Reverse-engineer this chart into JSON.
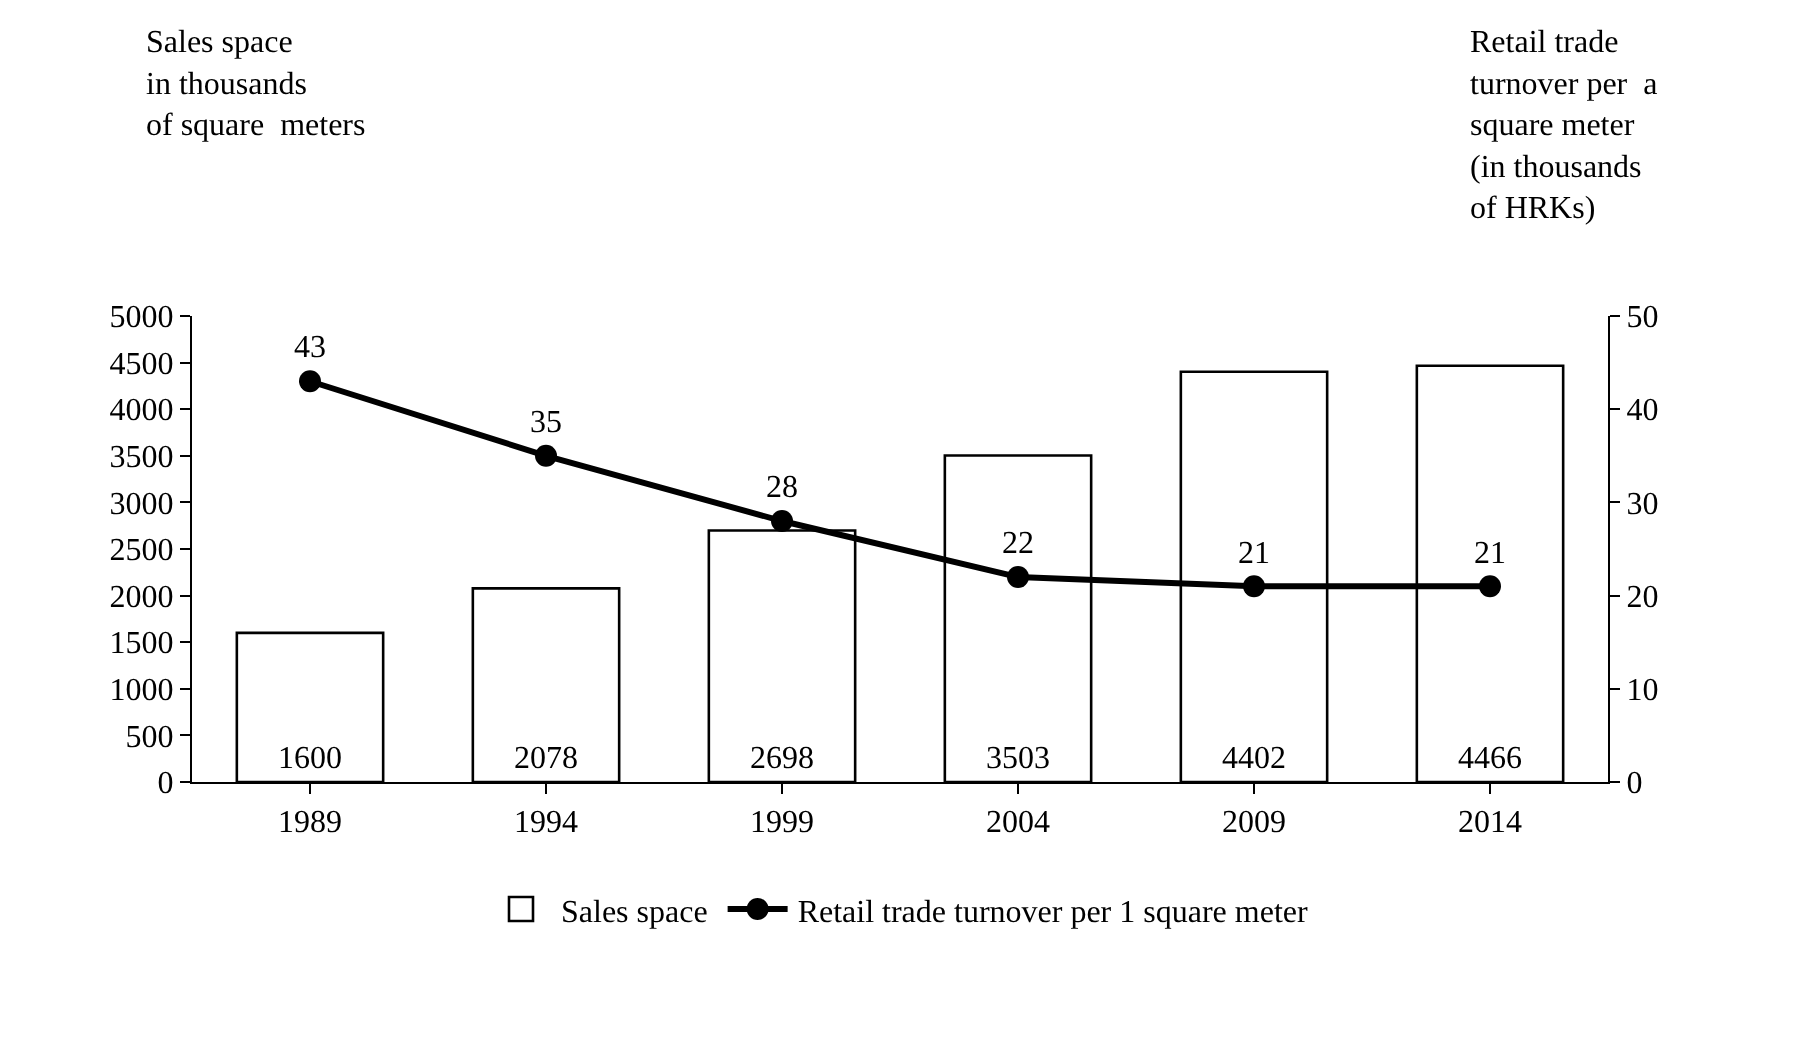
{
  "chart_data": {
    "type": "bar",
    "ylabel": "Sales space\nin thousands\nof square  meters",
    "y2label": "Retail trade\nturnover per  a\nsquare meter\n(in thousands\nof HRKs)",
    "categories": [
      "1989",
      "1994",
      "1999",
      "2004",
      "2009",
      "2014"
    ],
    "series": [
      {
        "name": "Sales space",
        "color": "#ffffff",
        "values": [
          1600,
          2078,
          2698,
          3503,
          4402,
          4466
        ]
      },
      {
        "name": "Retail trade turnover per 1 square meter",
        "type": "line",
        "axis": "y2",
        "color": "#000000",
        "marker": "circle",
        "values": [
          43,
          35,
          28,
          22,
          21,
          21
        ]
      }
    ],
    "data_labels": true,
    "grid": false,
    "legend": "bottom",
    "ylim": [
      0,
      5000
    ],
    "yticks": [
      0,
      500,
      1000,
      1500,
      2000,
      2500,
      3000,
      3500,
      4000,
      4500,
      5000
    ],
    "y2lim": [
      0,
      50
    ],
    "y2ticks": [
      0,
      10,
      20,
      30,
      40,
      50
    ]
  }
}
